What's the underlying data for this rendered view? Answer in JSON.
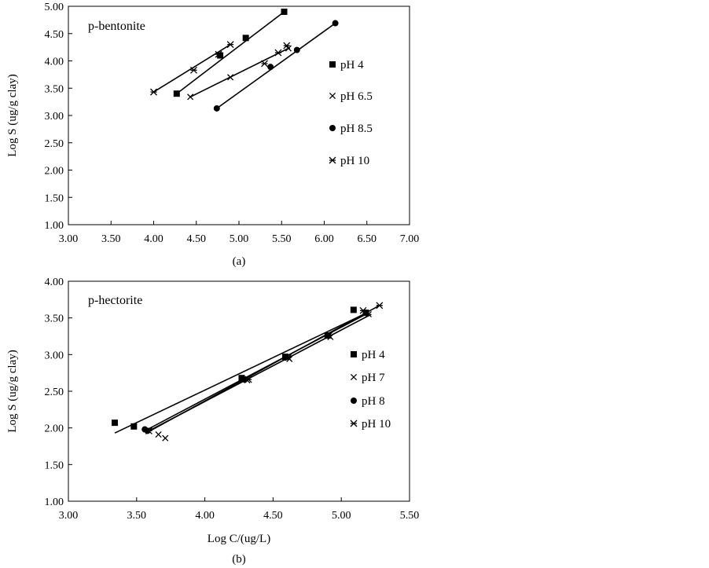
{
  "chart_data": [
    {
      "type": "scatter",
      "title": "p-bentonite",
      "panel_label": "(a)",
      "xlabel": "",
      "ylabel": "Log S (ug/g clay)",
      "xlim": [
        3.0,
        7.0
      ],
      "ylim": [
        1.0,
        5.0
      ],
      "xticks": [
        "3.00",
        "3.50",
        "4.00",
        "4.50",
        "5.00",
        "5.50",
        "6.00",
        "6.50",
        "7.00"
      ],
      "yticks": [
        "1.00",
        "1.50",
        "2.00",
        "2.50",
        "3.00",
        "3.50",
        "4.00",
        "4.50",
        "5.00"
      ],
      "grid": false,
      "legend_position": "right",
      "series": [
        {
          "name": "pH 4",
          "marker": "square",
          "points": [
            [
              4.27,
              3.4
            ],
            [
              4.78,
              4.1
            ],
            [
              5.08,
              4.42
            ],
            [
              5.53,
              4.9
            ]
          ],
          "fit": [
            [
              4.27,
              3.4
            ],
            [
              5.53,
              4.9
            ]
          ]
        },
        {
          "name": "pH 6.5",
          "marker": "x",
          "points": [
            [
              4.43,
              3.34
            ],
            [
              4.9,
              3.7
            ],
            [
              5.58,
              4.23
            ]
          ],
          "fit": [
            [
              4.43,
              3.34
            ],
            [
              5.58,
              4.23
            ]
          ]
        },
        {
          "name": "pH 8.5",
          "marker": "circle",
          "points": [
            [
              4.74,
              3.13
            ],
            [
              5.37,
              3.89
            ],
            [
              5.68,
              4.2
            ],
            [
              6.13,
              4.69
            ]
          ],
          "fit": [
            [
              4.74,
              3.13
            ],
            [
              6.13,
              4.69
            ]
          ]
        },
        {
          "name": "pH 10",
          "marker": "star",
          "points": [
            [
              4.0,
              3.43
            ],
            [
              4.47,
              3.83
            ],
            [
              4.76,
              4.12
            ],
            [
              4.9,
              4.3
            ],
            [
              5.3,
              3.95
            ],
            [
              5.46,
              4.15
            ],
            [
              5.56,
              4.28
            ]
          ],
          "fit": [
            [
              4.0,
              3.43
            ],
            [
              4.9,
              4.3
            ]
          ]
        }
      ]
    },
    {
      "type": "scatter",
      "title": "p-hectorite",
      "panel_label": "(b)",
      "xlabel": "Log C/(ug/L)",
      "ylabel": "Log S (ug/g clay)",
      "xlim": [
        3.0,
        5.5
      ],
      "ylim": [
        1.0,
        4.0
      ],
      "xticks": [
        "3.00",
        "3.50",
        "4.00",
        "4.50",
        "5.00",
        "5.50"
      ],
      "yticks": [
        "1.00",
        "1.50",
        "2.00",
        "2.50",
        "3.00",
        "3.50",
        "4.00"
      ],
      "grid": false,
      "legend_position": "right",
      "series": [
        {
          "name": "pH 4",
          "marker": "square",
          "points": [
            [
              3.34,
              2.07
            ],
            [
              3.48,
              2.02
            ],
            [
              4.27,
              2.68
            ],
            [
              4.59,
              2.97
            ],
            [
              4.9,
              3.26
            ],
            [
              5.09,
              3.61
            ],
            [
              5.18,
              3.57
            ]
          ],
          "fit": [
            [
              3.34,
              1.93
            ],
            [
              5.2,
              3.58
            ]
          ]
        },
        {
          "name": "pH 7",
          "marker": "x",
          "points": [
            [
              3.66,
              1.91
            ],
            [
              3.71,
              1.86
            ],
            [
              4.31,
              2.65
            ],
            [
              4.62,
              2.94
            ],
            [
              4.92,
              3.24
            ],
            [
              5.2,
              3.55
            ]
          ],
          "fit": [
            [
              3.57,
              1.94
            ],
            [
              5.22,
              3.55
            ]
          ]
        },
        {
          "name": "pH 8",
          "marker": "circle",
          "points": [
            [
              3.56,
              1.98
            ],
            [
              3.58,
              1.96
            ],
            [
              4.29,
              2.66
            ],
            [
              4.59,
              2.96
            ],
            [
              4.9,
              3.26
            ],
            [
              5.18,
              3.57
            ]
          ],
          "fit": [
            [
              3.56,
              1.96
            ],
            [
              5.2,
              3.57
            ]
          ]
        },
        {
          "name": "pH 10",
          "marker": "star",
          "points": [
            [
              3.59,
              1.96
            ],
            [
              4.32,
              2.66
            ],
            [
              4.61,
              2.96
            ],
            [
              4.91,
              3.26
            ],
            [
              5.16,
              3.6
            ],
            [
              5.28,
              3.67
            ]
          ],
          "fit": [
            [
              3.59,
              1.95
            ],
            [
              5.28,
              3.67
            ]
          ]
        }
      ]
    }
  ]
}
